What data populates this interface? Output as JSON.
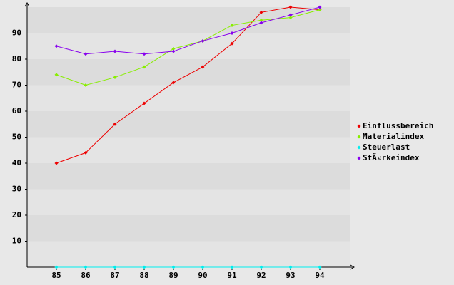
{
  "chart_data": {
    "type": "line",
    "categories": [
      "85",
      "86",
      "87",
      "88",
      "89",
      "90",
      "91",
      "92",
      "93",
      "94"
    ],
    "series": [
      {
        "name": "Einflussbereich",
        "color": "#ee0000",
        "values": [
          40,
          44,
          55,
          63,
          71,
          77,
          86,
          98,
          100,
          99
        ]
      },
      {
        "name": "Materialindex",
        "color": "#88ee00",
        "values": [
          74,
          70,
          73,
          77,
          84,
          87,
          93,
          95,
          96,
          99
        ]
      },
      {
        "name": "Steuerlast",
        "color": "#00eeee",
        "values": [
          0,
          0,
          0,
          0,
          0,
          0,
          0,
          0,
          0,
          0
        ]
      },
      {
        "name": "StÃ¤rkeindex",
        "color": "#8800ee",
        "values": [
          85,
          82,
          83,
          82,
          83,
          87,
          90,
          94,
          97,
          100
        ]
      }
    ],
    "ylim": [
      0,
      100
    ],
    "yticks": [
      10,
      20,
      30,
      40,
      50,
      60,
      70,
      80,
      90
    ],
    "grid": true,
    "legend": "right"
  }
}
